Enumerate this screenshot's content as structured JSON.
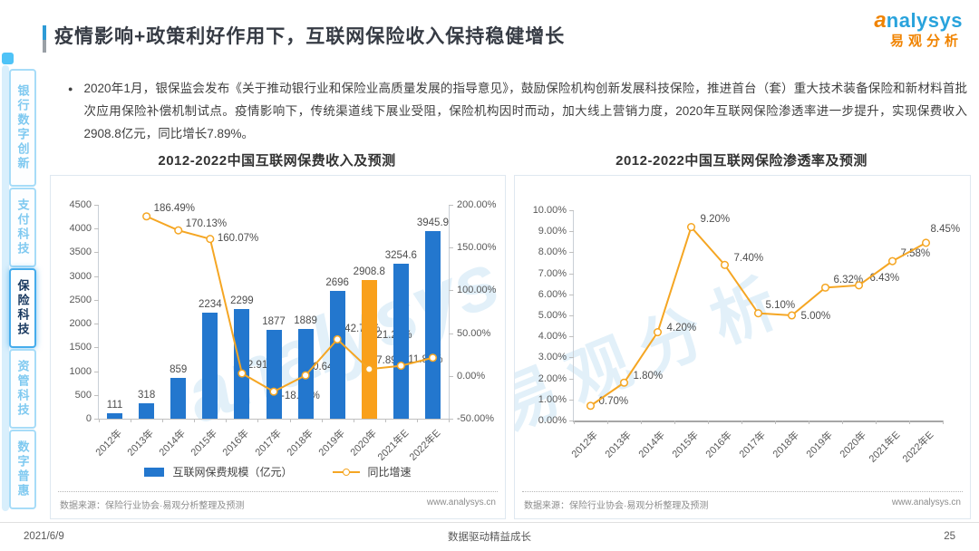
{
  "header": {
    "title": "疫情影响+政策利好作用下，互联网保险收入保持稳健增长",
    "logo_en_first": "a",
    "logo_en_rest": "nalysys",
    "logo_cn": "易观分析"
  },
  "sidebar": {
    "items": [
      {
        "label": "银行数字创新",
        "active": false
      },
      {
        "label": "支付科技",
        "active": false
      },
      {
        "label": "保险科技",
        "active": true
      },
      {
        "label": "资管科技",
        "active": false
      },
      {
        "label": "数字普惠",
        "active": false
      }
    ]
  },
  "bullet": {
    "text": "2020年1月，银保监会发布《关于推动银行业和保险业高质量发展的指导意见》，鼓励保险机构创新发展科技保险，推进首台（套）重大技术装备保险和新材料首批次应用保险补偿机制试点。疫情影响下，传统渠道线下展业受阻，保险机构因时而动，加大线上营销力度，2020年互联网保险渗透率进一步提升，实现保费收入2908.8亿元，同比增长7.89%。"
  },
  "chart_data": [
    {
      "type": "bar",
      "title": "2012-2022中国互联网保费收入及预测",
      "categories": [
        "2012年",
        "2013年",
        "2014年",
        "2015年",
        "2016年",
        "2017年",
        "2018年",
        "2019年",
        "2020年",
        "2021年E",
        "2022年E"
      ],
      "series": [
        {
          "name": "互联网保费规模（亿元）",
          "type": "bar",
          "values": [
            111,
            318,
            859,
            2234,
            2299,
            1877,
            1889,
            2696,
            2908.8,
            3254.6,
            3945.9
          ],
          "highlight_category": "2020年"
        },
        {
          "name": "同比增速",
          "type": "line",
          "axis": "right",
          "values": [
            null,
            186.49,
            170.13,
            160.07,
            2.91,
            -18.36,
            0.64,
            42.72,
            7.89,
            11.89,
            21.24
          ]
        }
      ],
      "y_left": {
        "min": 0,
        "max": 4500,
        "step": 500
      },
      "y_right": {
        "min": -50,
        "max": 200,
        "step": 50,
        "unit": "%"
      },
      "legend": [
        {
          "label": "互联网保费规模（亿元）"
        },
        {
          "label": "同比增速"
        }
      ],
      "source": "数据来源：保险行业协会·易观分析整理及预测",
      "website": "www.analysys.cn"
    },
    {
      "type": "line",
      "title": "2012-2022中国互联网保险渗透率及预测",
      "categories": [
        "2012年",
        "2013年",
        "2014年",
        "2015年",
        "2016年",
        "2017年",
        "2018年",
        "2019年",
        "2020年",
        "2021年E",
        "2022年E"
      ],
      "series": [
        {
          "name": "互联网保险渗透率",
          "type": "line",
          "values": [
            0.7,
            1.8,
            4.2,
            9.2,
            7.4,
            5.1,
            5.0,
            6.32,
            6.43,
            7.58,
            8.45
          ]
        }
      ],
      "y": {
        "min": 0,
        "max": 10,
        "step": 1,
        "unit": "%"
      },
      "source": "数据来源：保险行业协会·易观分析整理及预测",
      "website": "www.analysys.cn"
    }
  ],
  "footer": {
    "date": "2021/6/9",
    "slogan": "数据驱动精益成长",
    "page": "25"
  },
  "colors": {
    "bar_blue": "#2377CE",
    "highlight_orange": "#F9A01B",
    "line_orange": "#F5A623",
    "accent_blue": "#2E9BD6",
    "sidebar_active_text": "#17375E",
    "sidebar_inactive_text": "#7FC9F0",
    "logo_blue": "#29A3DC",
    "logo_orange": "#F08300"
  }
}
